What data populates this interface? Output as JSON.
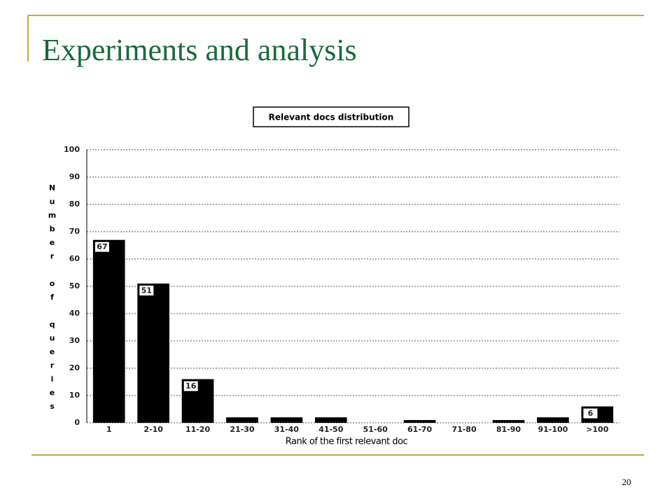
{
  "slide_title": "Experiments and analysis",
  "page_number": "20",
  "chart_data": {
    "type": "bar",
    "title": "Relevant docs distribution",
    "x_label": "Rank of the first relevant doc",
    "y_label": "Number of queries",
    "categories": [
      "1",
      "2-10",
      "11-20",
      "21-30",
      "31-40",
      "41-50",
      "51-60",
      "61-70",
      "71-80",
      "81-90",
      "91-100",
      ">100"
    ],
    "values": [
      67,
      51,
      16,
      2,
      2,
      2,
      0,
      1,
      0,
      1,
      2,
      6
    ],
    "value_labels": [
      "67",
      "51",
      "16",
      null,
      null,
      null,
      null,
      null,
      null,
      null,
      null,
      "6"
    ],
    "color": "#000000",
    "ylim": [
      0,
      100
    ],
    "yticks": [
      0,
      10,
      20,
      30,
      40,
      50,
      60,
      70,
      80,
      90,
      100
    ],
    "grid": true
  }
}
